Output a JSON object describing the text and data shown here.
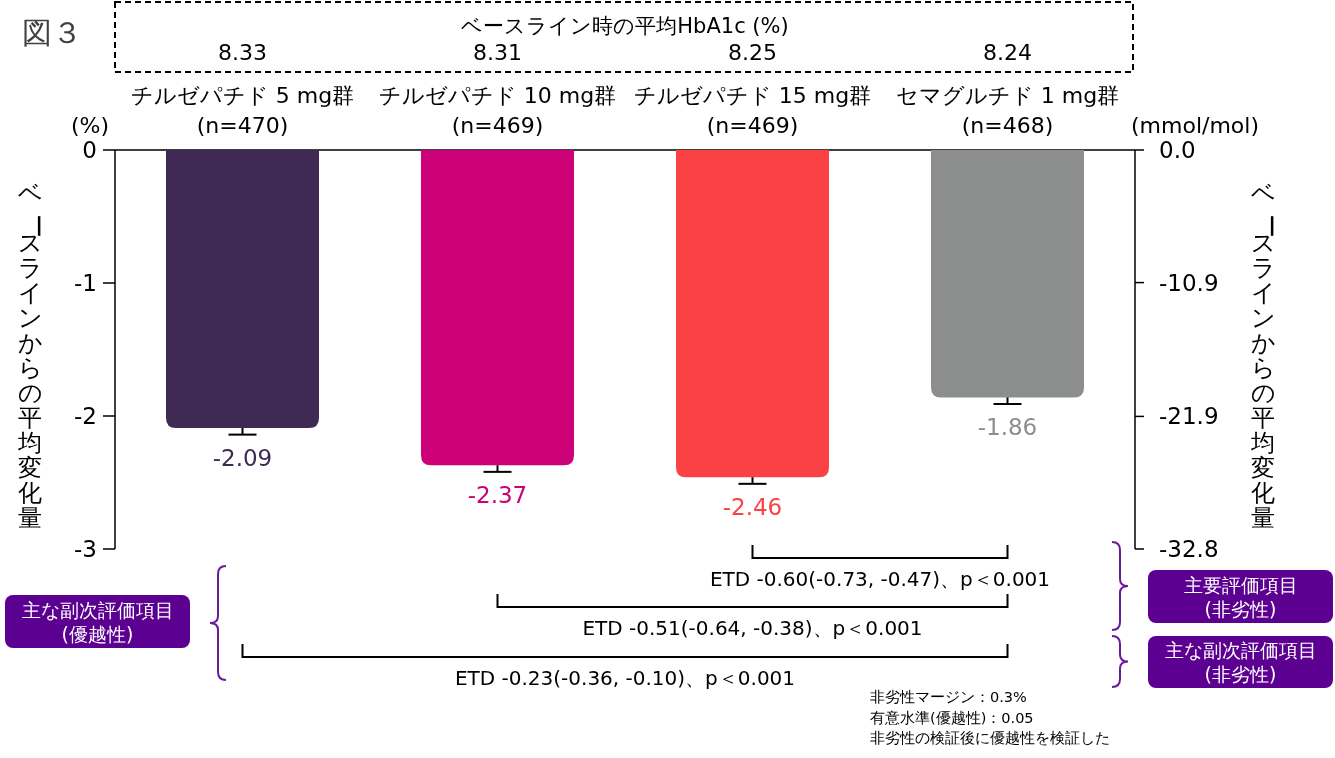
{
  "chart_data": {
    "type": "bar",
    "title": "図３",
    "ylabel": "ベースラインからの平均変化量",
    "y2label": "ベースラインからの平均変化量",
    "categories": [
      "チルゼパチド 5 mg群\n(n=470)",
      "チルゼパチド 10 mg群\n(n=469)",
      "チルゼパチド 15 mg群\n(n=469)",
      "セマグルチド 1 mg群\n(n=468)"
    ],
    "values": [
      -2.09,
      -2.37,
      -2.46,
      -1.86
    ],
    "colors": [
      "#3f2a56",
      "#cc0077",
      "#fa4143",
      "#8c8d8d"
    ],
    "errors": [
      [
        -2.14,
        -2.09
      ],
      [
        -2.42,
        -2.37
      ],
      [
        -2.51,
        -2.46
      ],
      [
        -1.91,
        -1.86
      ]
    ],
    "data_labels": true,
    "ylim": [
      -3,
      0
    ],
    "yticks": [
      -3,
      -2,
      -1,
      0
    ],
    "y2lim": [
      -32.8,
      0
    ],
    "y2ticks": [
      -32.8,
      -21.9,
      -10.9,
      {
        "value": 0,
        "label": "0.0"
      }
    ],
    "annotations": [
      "(%)",
      "(mmol/mol)",
      "ベースライン時の平均HbA1c (%)",
      "8.33",
      "8.31",
      "8.25",
      "8.24",
      "ETD -0.60(-0.73, -0.47)、p＜0.001",
      "ETD -0.51(-0.64, -0.38)、p＜0.001",
      "ETD -0.23(-0.36, -0.10)、p＜0.001",
      "主要評価項目\n(非劣性)",
      "主な副次評価項目\n(非劣性)",
      "主な副次評価項目\n(優越性)",
      "非劣性マージン：0.3%",
      "有意水準(優越性)：0.05",
      "非劣性の検証後に優越性を検証した"
    ]
  }
}
